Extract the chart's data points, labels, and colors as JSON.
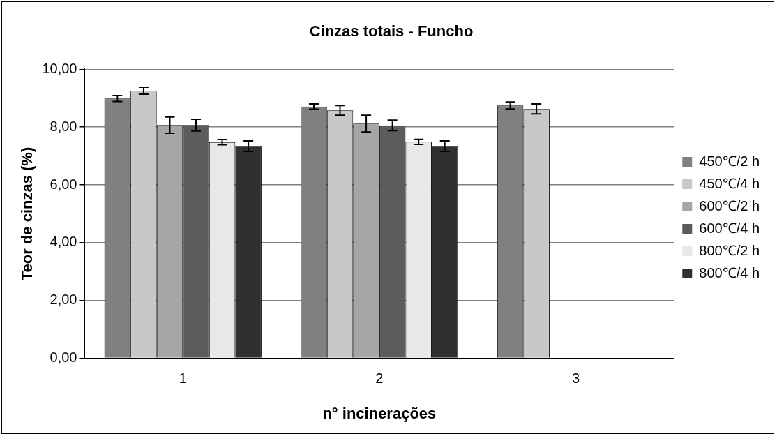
{
  "chart_data": {
    "type": "bar",
    "title": "Cinzas totais - Funcho",
    "xlabel": "n° incinerações",
    "ylabel": "Teor de cinzas (%)",
    "categories": [
      "1",
      "2",
      "3"
    ],
    "series": [
      {
        "name": "450℃/2 h",
        "color": "#808080",
        "values": [
          8.99,
          8.71,
          8.75
        ],
        "errors": [
          0.1,
          0.09,
          0.12
        ]
      },
      {
        "name": "450℃/4 h",
        "color": "#c8c8c8",
        "values": [
          9.26,
          8.58,
          8.63
        ],
        "errors": [
          0.12,
          0.17,
          0.17
        ]
      },
      {
        "name": "600℃/2 h",
        "color": "#a6a6a6",
        "values": [
          8.07,
          8.12,
          null
        ],
        "errors": [
          0.28,
          0.29,
          null
        ]
      },
      {
        "name": "600℃/4 h",
        "color": "#5c5c5c",
        "values": [
          8.07,
          8.06,
          null
        ],
        "errors": [
          0.2,
          0.18,
          null
        ]
      },
      {
        "name": "800℃/2 h",
        "color": "#e8e8e8",
        "values": [
          7.48,
          7.49,
          null
        ],
        "errors": [
          0.09,
          0.09,
          null
        ]
      },
      {
        "name": "800℃/4 h",
        "color": "#303030",
        "values": [
          7.34,
          7.34,
          null
        ],
        "errors": [
          0.18,
          0.18,
          null
        ]
      }
    ],
    "ylim": [
      0,
      10
    ],
    "yticks": [
      {
        "value": 0,
        "label": "0,00"
      },
      {
        "value": 2,
        "label": "2,00"
      },
      {
        "value": 4,
        "label": "4,00"
      },
      {
        "value": 6,
        "label": "6,00"
      },
      {
        "value": 8,
        "label": "8,00"
      },
      {
        "value": 10,
        "label": "10,00"
      }
    ],
    "grid": "y",
    "legend": "right"
  }
}
